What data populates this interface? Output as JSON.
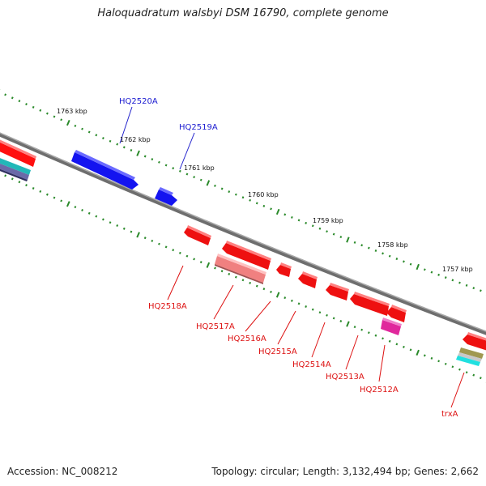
{
  "title": "Haloquadratum walsbyi DSM 16790, complete genome",
  "footer": {
    "accession": "Accession: NC_008212",
    "topology": "Topology: circular; Length: 3,132,494 bp; Genes: 2,662"
  },
  "colors": {
    "forward_gene": "#1a1aff",
    "reverse_gene": "#ff1a1a",
    "pseudo_gene": "#f08080",
    "trna_gene": "#e0289c",
    "backbone": "#808080",
    "tick": "#2a8a2a"
  },
  "scale_labels": [
    "1763 kbp",
    "1762 kbp",
    "1761 kbp",
    "1760 kbp",
    "1759 kbp",
    "1758 kbp",
    "1757 kbp"
  ],
  "forward_labels": [
    "HQ2520A",
    "HQ2519A"
  ],
  "reverse_labels": [
    "HQ2518A",
    "HQ2517A",
    "HQ2516A",
    "HQ2515A",
    "HQ2514A",
    "HQ2513A",
    "HQ2512A",
    "trxA"
  ]
}
